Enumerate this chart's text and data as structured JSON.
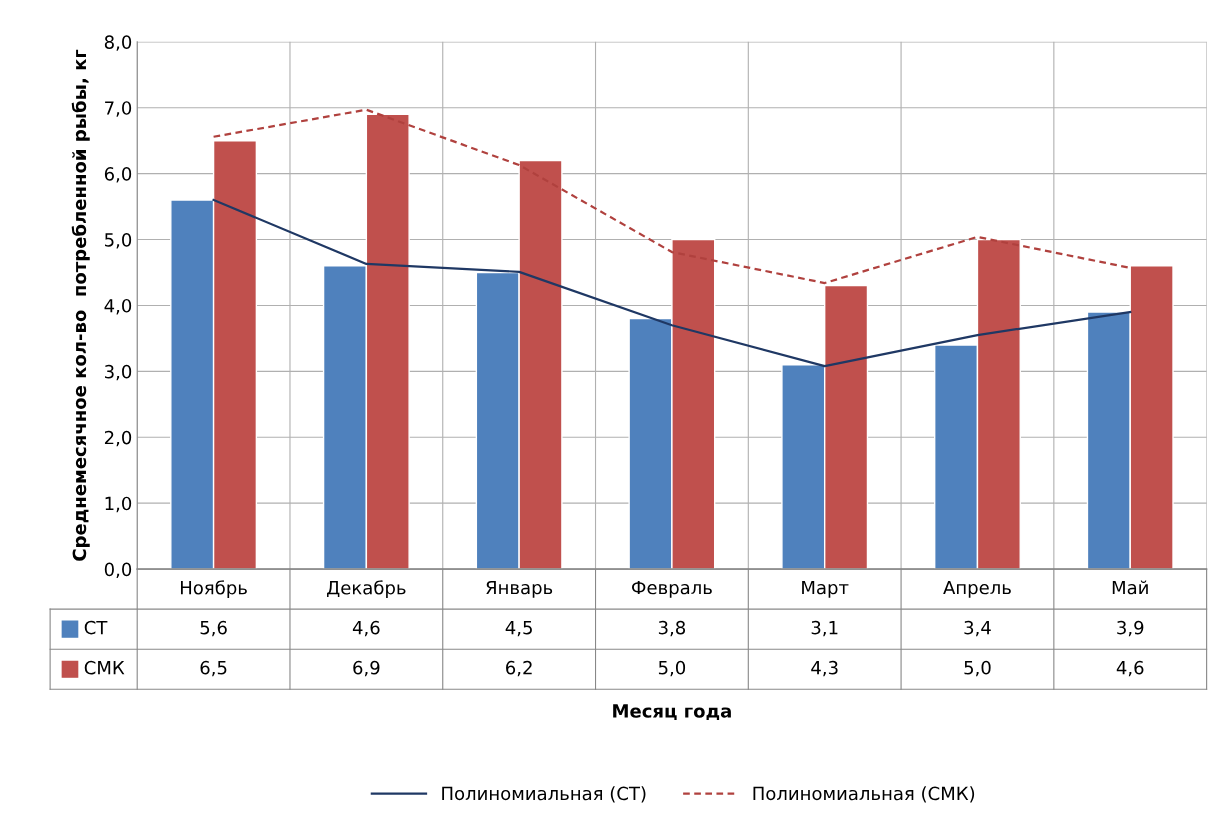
{
  "chart_data": {
    "type": "bar",
    "annotations": [
      "Месяц года"
    ],
    "ylabel": "Среднемесячное кол-во  потребленной рыбы, кг",
    "categories": [
      "Ноябрь",
      "Декабрь",
      "Январь",
      "Февраль",
      "Март",
      "Апрель",
      "Май"
    ],
    "ylim": [
      0,
      8
    ],
    "yticks": [
      {
        "value": 0,
        "label": "0,0"
      },
      {
        "value": 1,
        "label": "1,0"
      },
      {
        "value": 2,
        "label": "2,0"
      },
      {
        "value": 3,
        "label": "3,0"
      },
      {
        "value": 4,
        "label": "4,0"
      },
      {
        "value": 5,
        "label": "5,0"
      },
      {
        "value": 6,
        "label": "6,0"
      },
      {
        "value": 7,
        "label": "7,0"
      },
      {
        "value": 8,
        "label": "8,0"
      }
    ],
    "grid": true,
    "legend": "bottom",
    "series": [
      {
        "name": "СТ",
        "color": "#4f81bd",
        "values": [
          5.6,
          4.6,
          4.5,
          3.8,
          3.1,
          3.4,
          3.9
        ],
        "value_labels": [
          "5,6",
          "4,6",
          "4,5",
          "3,8",
          "3,1",
          "3,4",
          "3,9"
        ]
      },
      {
        "name": "СМК",
        "color": "#c0504d",
        "values": [
          6.5,
          6.9,
          6.2,
          5.0,
          4.3,
          5.0,
          4.6
        ],
        "value_labels": [
          "6,5",
          "6,9",
          "6,2",
          "5,0",
          "4,3",
          "5,0",
          "4,6"
        ]
      },
      {
        "name": "Полиномиальная (СТ)",
        "type": "line",
        "color": "#1f3864",
        "line_style": "solid",
        "values": [
          5.6,
          4.63,
          4.51,
          3.7,
          3.08,
          3.55,
          3.9
        ]
      },
      {
        "name": "Полиномиальная (СМК)",
        "type": "line",
        "color": "#b0413e",
        "line_style": "dashed",
        "values": [
          6.56,
          6.97,
          6.13,
          4.81,
          4.34,
          5.04,
          4.57
        ]
      }
    ]
  }
}
